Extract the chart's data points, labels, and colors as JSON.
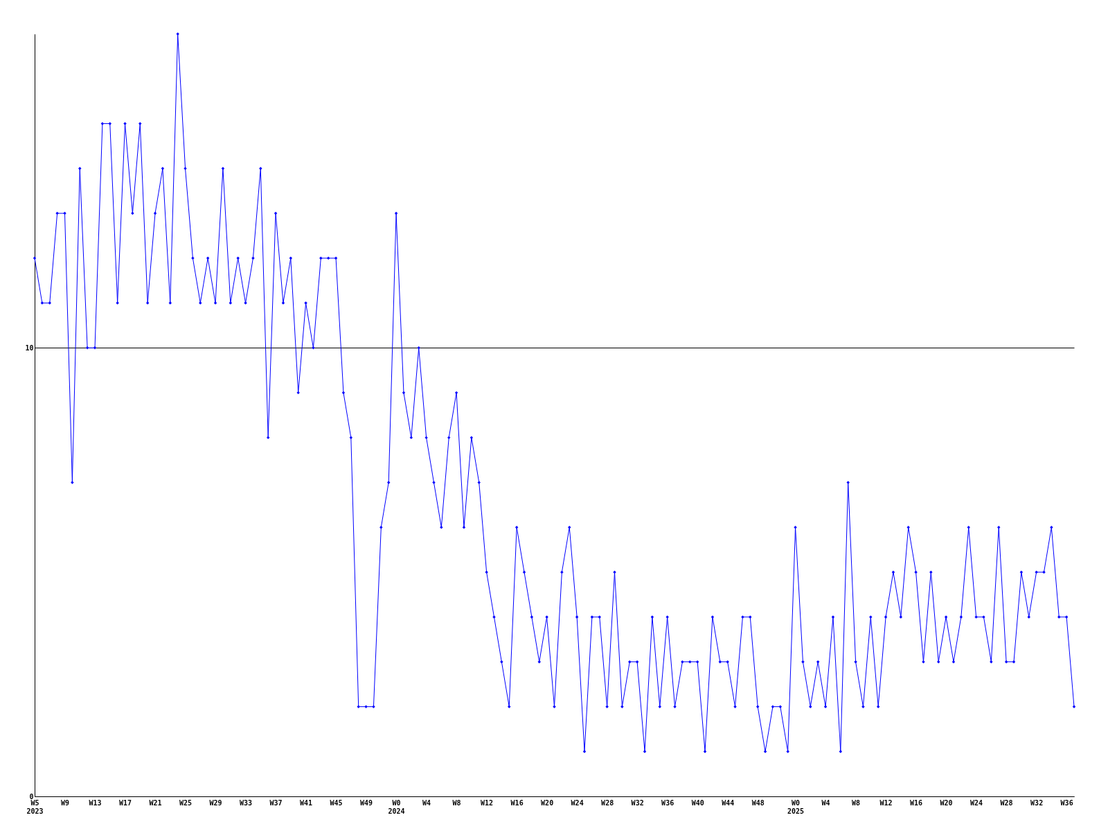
{
  "chart_data": {
    "type": "line",
    "categories": [
      "W5\n2023",
      null,
      null,
      null,
      "W9",
      null,
      null,
      null,
      "W13",
      null,
      null,
      null,
      "W17",
      null,
      null,
      null,
      "W21",
      null,
      null,
      null,
      "W25",
      null,
      null,
      null,
      "W29",
      null,
      null,
      null,
      "W33",
      null,
      null,
      null,
      "W37",
      null,
      null,
      null,
      "W41",
      null,
      null,
      null,
      "W45",
      null,
      null,
      null,
      "W49",
      null,
      null,
      null,
      "W0\n2024",
      null,
      null,
      null,
      "W4",
      null,
      null,
      null,
      "W8",
      null,
      null,
      null,
      "W12",
      null,
      null,
      null,
      "W16",
      null,
      null,
      null,
      "W20",
      null,
      null,
      null,
      "W24",
      null,
      null,
      null,
      "W28",
      null,
      null,
      null,
      "W32",
      null,
      null,
      null,
      "W36",
      null,
      null,
      null,
      "W40",
      null,
      null,
      null,
      "W44",
      null,
      null,
      null,
      "W48",
      null,
      null,
      null,
      null,
      "W0\n2025",
      null,
      null,
      null,
      "W4",
      null,
      null,
      null,
      "W8",
      null,
      null,
      null,
      "W12",
      null,
      null,
      null,
      "W16",
      null,
      null,
      null,
      "W20",
      null,
      null,
      null,
      "W24",
      null,
      null,
      null,
      "W28",
      null,
      null,
      null,
      "W32",
      null,
      null,
      null,
      "W36",
      null
    ],
    "series": [
      {
        "color": "#0000ff",
        "values": [
          12,
          11,
          11,
          13,
          13,
          7,
          14,
          10,
          10,
          15,
          15,
          11,
          15,
          13,
          15,
          11,
          13,
          14,
          11,
          17,
          14,
          12,
          11,
          12,
          11,
          14,
          11,
          12,
          11,
          12,
          14,
          8,
          13,
          11,
          12,
          9,
          11,
          10,
          12,
          12,
          12,
          9,
          8,
          2,
          2,
          2,
          6,
          7,
          13,
          9,
          8,
          10,
          8,
          7,
          6,
          8,
          9,
          6,
          8,
          7,
          5,
          4,
          3,
          2,
          6,
          5,
          4,
          3,
          4,
          2,
          5,
          6,
          4,
          1,
          4,
          4,
          2,
          5,
          2,
          3,
          3,
          1,
          4,
          2,
          4,
          2,
          3,
          3,
          3,
          1,
          4,
          3,
          3,
          2,
          4,
          4,
          2,
          1,
          2,
          2,
          1,
          6,
          3,
          2,
          3,
          2,
          4,
          1,
          7,
          3,
          2,
          4,
          2,
          4,
          5,
          4,
          6,
          5,
          3,
          5,
          3,
          4,
          3,
          4,
          6,
          4,
          4,
          3,
          6,
          3,
          3,
          5,
          4,
          5,
          5,
          6,
          4,
          4,
          2
        ]
      }
    ],
    "ylim": [
      0,
      17
    ],
    "yticks": [
      0,
      10
    ],
    "grid": "y",
    "marker": "diamond",
    "line_style": "solid"
  }
}
